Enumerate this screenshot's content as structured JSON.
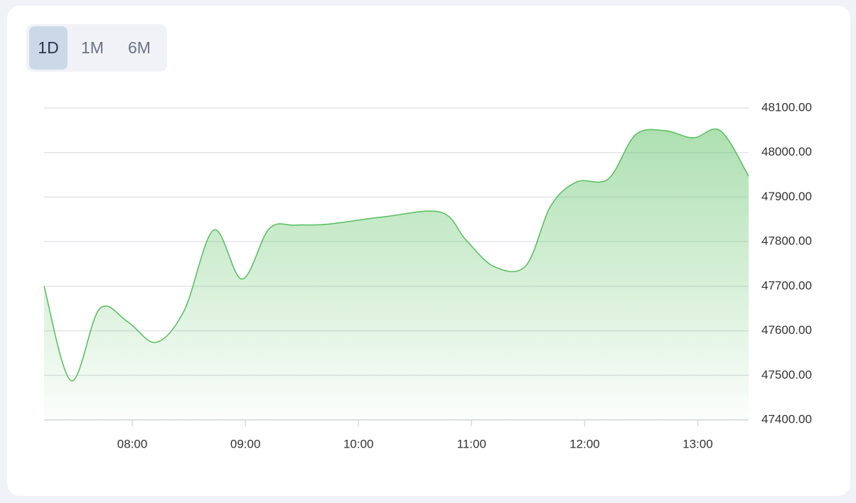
{
  "range_buttons": [
    "1D",
    "1M",
    "6M"
  ],
  "active_button": 0,
  "chart_data": {
    "type": "area",
    "x": [
      7.22,
      7.46,
      7.71,
      7.96,
      8.21,
      8.46,
      8.72,
      8.97,
      9.21,
      9.44,
      9.72,
      10.23,
      10.73,
      10.95,
      11.2,
      11.48,
      11.7,
      11.93,
      12.21,
      12.45,
      12.71,
      12.96,
      13.2,
      13.45
    ],
    "values": [
      47700,
      47488,
      47649,
      47620,
      47574,
      47646,
      47826,
      47716,
      47829,
      47837,
      47839,
      47856,
      47866,
      47804,
      47744,
      47746,
      47880,
      47934,
      47941,
      48040,
      48049,
      48033,
      48049,
      47947
    ],
    "color": "#5cc163",
    "xlim": [
      7.22,
      13.45
    ],
    "xticks": [
      {
        "value": 8,
        "label": "08:00"
      },
      {
        "value": 9,
        "label": "09:00"
      },
      {
        "value": 10,
        "label": "10:00"
      },
      {
        "value": 11,
        "label": "11:00"
      },
      {
        "value": 12,
        "label": "12:00"
      },
      {
        "value": 13,
        "label": "13:00"
      }
    ],
    "ylim": [
      47400,
      48100
    ],
    "yticks": [
      {
        "value": 47400,
        "label": "47400.00"
      },
      {
        "value": 47500,
        "label": "47500.00"
      },
      {
        "value": 47600,
        "label": "47600.00"
      },
      {
        "value": 47700,
        "label": "47700.00"
      },
      {
        "value": 47800,
        "label": "47800.00"
      },
      {
        "value": 47900,
        "label": "47900.00"
      },
      {
        "value": 48000,
        "label": "48000.00"
      },
      {
        "value": 48100,
        "label": "48100.00"
      }
    ],
    "grid": true
  }
}
